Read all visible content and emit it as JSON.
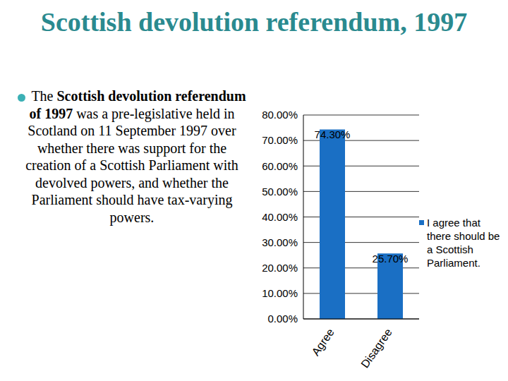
{
  "title": "Scottish devolution referendum, 1997",
  "bullet": [
    "The ",
    "Scottish devolution referendum of 1997",
    " was a pre-legislative held in Scotland on 11 September 1997 over whether there was support for the creation of a Scottish Parliament with devolved powers, and whether the Parliament should have tax-varying powers."
  ],
  "chart_data": {
    "type": "bar",
    "categories": [
      "Agree",
      "Disagree"
    ],
    "series": [
      {
        "name": "I agree that there should be a Scottish Parliament.",
        "color": "#1a6fc4",
        "values": [
          74.3,
          25.7
        ],
        "value_labels": [
          "74.30%",
          "25.70%"
        ]
      }
    ],
    "ylim": [
      0,
      80
    ],
    "yticks": [
      {
        "value": 0,
        "label": "0.00%"
      },
      {
        "value": 10,
        "label": "10.00%"
      },
      {
        "value": 20,
        "label": "20.00%"
      },
      {
        "value": 30,
        "label": "30.00%"
      },
      {
        "value": 40,
        "label": "40.00%"
      },
      {
        "value": 50,
        "label": "50.00%"
      },
      {
        "value": 60,
        "label": "60.00%"
      },
      {
        "value": 70,
        "label": "70.00%"
      },
      {
        "value": 80,
        "label": "80.00%"
      }
    ],
    "grid": true,
    "legend": "right",
    "data_labels": true
  }
}
